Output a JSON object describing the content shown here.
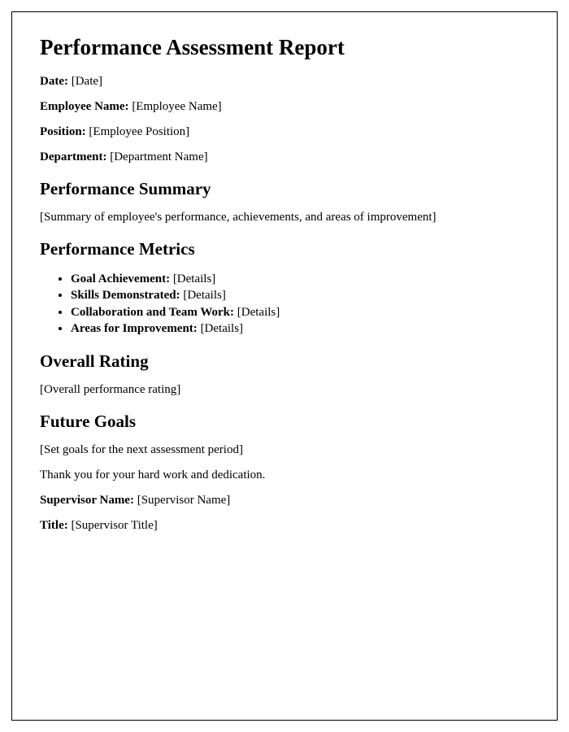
{
  "document": {
    "border_color": "#000000",
    "background_color": "#ffffff",
    "font_family": "Times New Roman",
    "title": "Performance Assessment Report",
    "title_fontsize": 27,
    "h2_fontsize": 21,
    "body_fontsize": 15,
    "header_fields": [
      {
        "label": "Date:",
        "value": "[Date]"
      },
      {
        "label": "Employee Name:",
        "value": "[Employee Name]"
      },
      {
        "label": "Position:",
        "value": "[Employee Position]"
      },
      {
        "label": "Department:",
        "value": "[Department Name]"
      }
    ],
    "sections": {
      "summary": {
        "heading": "Performance Summary",
        "text": "[Summary of employee's performance, achievements, and areas of improvement]"
      },
      "metrics": {
        "heading": "Performance Metrics",
        "items": [
          {
            "label": "Goal Achievement:",
            "value": "[Details]"
          },
          {
            "label": "Skills Demonstrated:",
            "value": "[Details]"
          },
          {
            "label": "Collaboration and Team Work:",
            "value": "[Details]"
          },
          {
            "label": "Areas for Improvement:",
            "value": "[Details]"
          }
        ]
      },
      "rating": {
        "heading": "Overall Rating",
        "text": "[Overall performance rating]"
      },
      "goals": {
        "heading": "Future Goals",
        "text": "[Set goals for the next assessment period]"
      }
    },
    "closing_text": "Thank you for your hard work and dedication.",
    "footer_fields": [
      {
        "label": "Supervisor Name:",
        "value": "[Supervisor Name]"
      },
      {
        "label": "Title:",
        "value": "[Supervisor Title]"
      }
    ]
  }
}
